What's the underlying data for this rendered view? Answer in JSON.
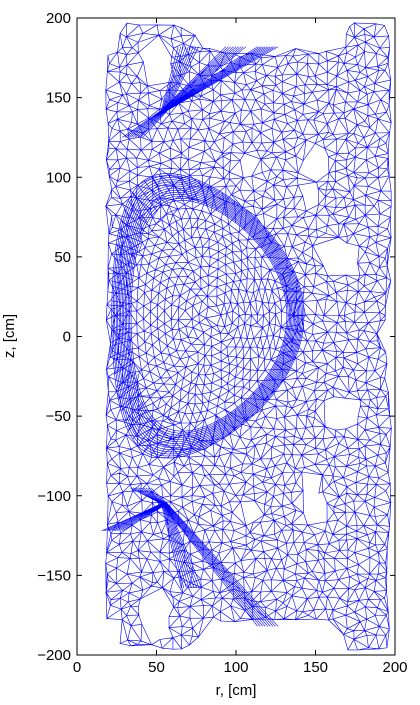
{
  "chart_data": {
    "type": "mesh",
    "xlabel": "r, [cm]",
    "ylabel": "z, [cm]",
    "xlim": [
      0,
      200
    ],
    "ylim": [
      -200,
      200
    ],
    "xticks": [
      0,
      50,
      100,
      150,
      200
    ],
    "xtick_labels": [
      "0",
      "50",
      "100",
      "150",
      "200"
    ],
    "yticks": [
      200,
      150,
      100,
      50,
      0,
      -50,
      -100,
      -150,
      -200
    ],
    "ytick_labels": [
      "200",
      "150",
      "100",
      "50",
      "0",
      "−50",
      "−100",
      "−150",
      "−200"
    ],
    "mesh_color": "#0000ff",
    "grid": false,
    "plasma_boundary": {
      "r_min": 37,
      "r_max": 135,
      "z_min": -58,
      "z_max": 84
    },
    "holes": [
      {
        "r": [
          43,
          57
        ],
        "z": [
          160,
          188
        ]
      },
      {
        "r": [
          43,
          57
        ],
        "z": [
          -190,
          -160
        ]
      },
      {
        "r": [
          105,
          114
        ],
        "z": [
          103,
          114
        ]
      },
      {
        "r": [
          143,
          157
        ],
        "z": [
          100,
          118
        ]
      },
      {
        "r": [
          143,
          150
        ],
        "z": [
          82,
          100
        ]
      },
      {
        "r": [
          157,
          175
        ],
        "z": [
          40,
          58
        ]
      },
      {
        "r": [
          157,
          175
        ],
        "z": [
          -57,
          -40
        ]
      },
      {
        "r": [
          105,
          114
        ],
        "z": [
          -115,
          -104
        ]
      },
      {
        "r": [
          143,
          157
        ],
        "z": [
          -118,
          -100
        ]
      },
      {
        "r": [
          143,
          150
        ],
        "z": [
          -100,
          -85
        ]
      }
    ]
  }
}
